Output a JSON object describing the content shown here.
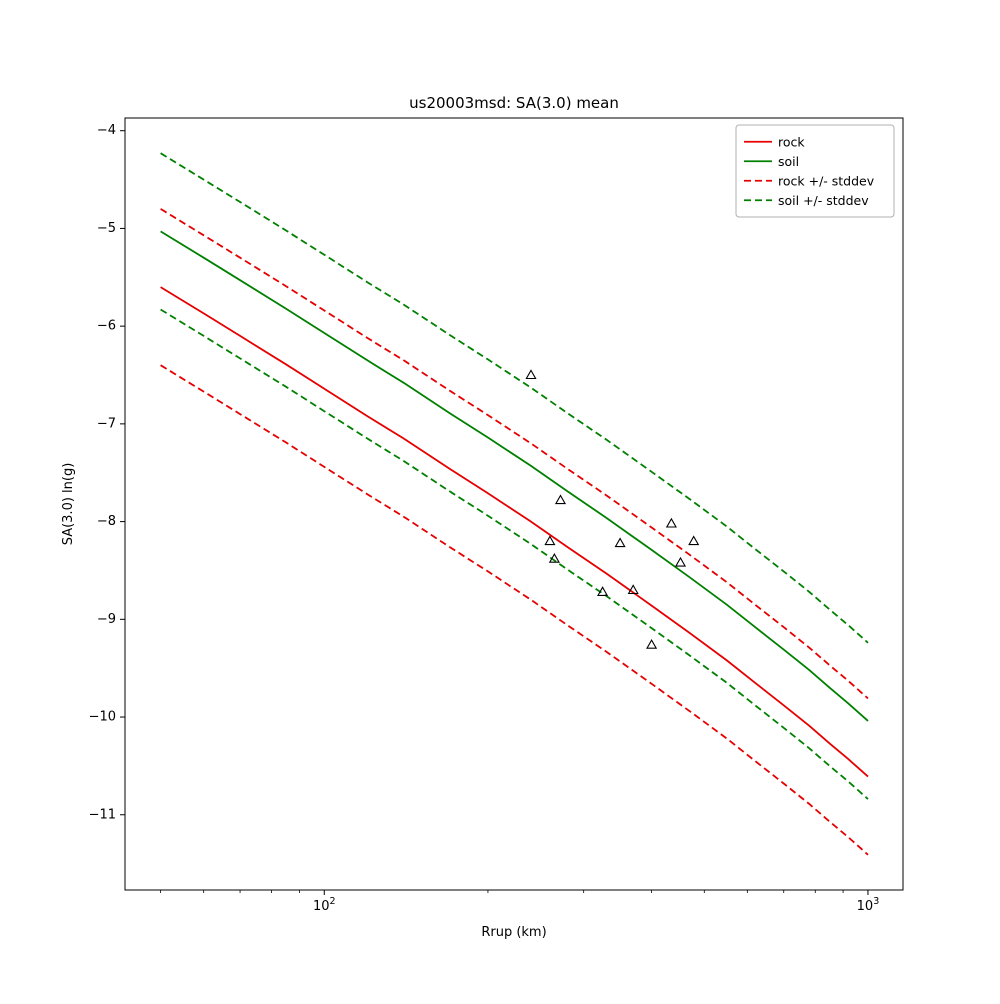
{
  "figure": {
    "title": "us20003msd: SA(3.0) mean",
    "xlabel": "Rrup (km)",
    "ylabel": "SA(3.0) ln(g)"
  },
  "chart_data": {
    "type": "line",
    "title": "us20003msd: SA(3.0) mean",
    "xlabel": "Rrup (km)",
    "ylabel": "SA(3.0) ln(g)",
    "x_scale": "log",
    "y_scale": "linear",
    "xlim": [
      43,
      1160
    ],
    "ylim": [
      -11.77,
      -3.87
    ],
    "xticks": [
      {
        "value": 100,
        "label": "10^2"
      },
      {
        "value": 1000,
        "label": "10^3"
      }
    ],
    "yticks": [
      -4,
      -5,
      -6,
      -7,
      -8,
      -9,
      -10,
      -11
    ],
    "grid": false,
    "legend_position": "upper right",
    "x": [
      50,
      60,
      70,
      85,
      100,
      120,
      140,
      170,
      200,
      240,
      280,
      330,
      400,
      470,
      550,
      620,
      700,
      780,
      850,
      920,
      1000
    ],
    "series": [
      {
        "name": "rock",
        "label": "rock",
        "color": "#e60000",
        "style": "solid",
        "values": [
          -5.6,
          -5.87,
          -6.1,
          -6.39,
          -6.64,
          -6.92,
          -7.15,
          -7.46,
          -7.71,
          -8.0,
          -8.26,
          -8.53,
          -8.86,
          -9.14,
          -9.42,
          -9.65,
          -9.88,
          -10.09,
          -10.27,
          -10.43,
          -10.61
        ]
      },
      {
        "name": "soil",
        "label": "soil",
        "color": "#008000",
        "style": "solid",
        "values": [
          -5.03,
          -5.3,
          -5.53,
          -5.82,
          -6.07,
          -6.35,
          -6.58,
          -6.89,
          -7.14,
          -7.43,
          -7.69,
          -7.96,
          -8.29,
          -8.57,
          -8.85,
          -9.08,
          -9.31,
          -9.52,
          -9.7,
          -9.86,
          -10.04
        ]
      },
      {
        "name": "rock-stddev",
        "label": "rock +/- stddev",
        "color": "#e60000",
        "style": "dashed",
        "band_of": "rock",
        "stddev": 0.8
      },
      {
        "name": "soil-stddev",
        "label": "soil +/- stddev",
        "color": "#008000",
        "style": "dashed",
        "band_of": "soil",
        "stddev": 0.8
      }
    ],
    "scatter": {
      "name": "station-observations",
      "marker": "triangle-up",
      "edge_color": "#000000",
      "points": [
        [
          240,
          -6.5
        ],
        [
          272,
          -7.78
        ],
        [
          260,
          -8.2
        ],
        [
          265,
          -8.38
        ],
        [
          350,
          -8.22
        ],
        [
          435,
          -8.02
        ],
        [
          478,
          -8.2
        ],
        [
          452,
          -8.42
        ],
        [
          325,
          -8.72
        ],
        [
          370,
          -8.7
        ],
        [
          400,
          -9.26
        ]
      ]
    }
  }
}
